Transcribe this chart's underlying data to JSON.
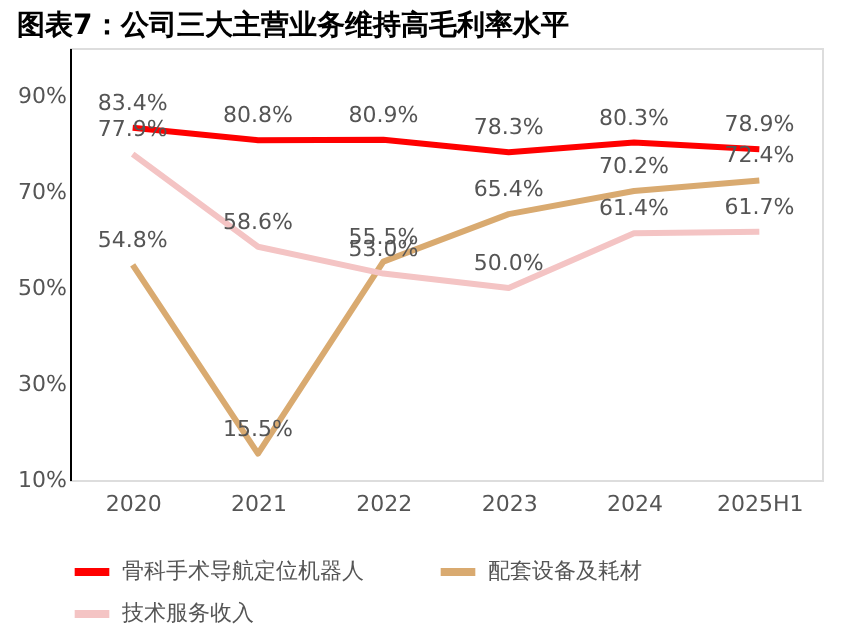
{
  "chart_data": {
    "type": "line",
    "title": "图表7：公司三大主营业务维持高毛利率水平",
    "categories": [
      "2020",
      "2021",
      "2022",
      "2023",
      "2024",
      "2025H1"
    ],
    "series": [
      {
        "name": "骨科手术导航定位机器人",
        "color": "#ff0000",
        "values": [
          83.4,
          80.8,
          80.9,
          78.3,
          80.3,
          78.9
        ],
        "value_labels": [
          "83.4%",
          "80.8%",
          "80.9%",
          "78.3%",
          "80.3%",
          "78.9%"
        ]
      },
      {
        "name": "配套设备及耗材",
        "color": "#d9aa70",
        "values": [
          54.8,
          15.5,
          55.5,
          65.4,
          70.2,
          72.4
        ],
        "value_labels": [
          "54.8%",
          "15.5%",
          "55.5%",
          "65.4%",
          "70.2%",
          "72.4%"
        ]
      },
      {
        "name": "技术服务收入",
        "color": "#f4c4c4",
        "values": [
          77.9,
          58.6,
          53.0,
          50.0,
          61.4,
          61.7
        ],
        "value_labels": [
          "77.9%",
          "58.6%",
          "53.0%",
          "50.0%",
          "61.4%",
          "61.7%"
        ]
      }
    ],
    "ylim": [
      10,
      100
    ],
    "yticks": [
      {
        "value": 10,
        "label": "10%"
      },
      {
        "value": 30,
        "label": "30%"
      },
      {
        "value": 50,
        "label": "50%"
      },
      {
        "value": 70,
        "label": "70%"
      },
      {
        "value": 90,
        "label": "90%"
      }
    ],
    "grid": false,
    "legend": "bottom",
    "marker": "none",
    "line_style": "solid"
  }
}
